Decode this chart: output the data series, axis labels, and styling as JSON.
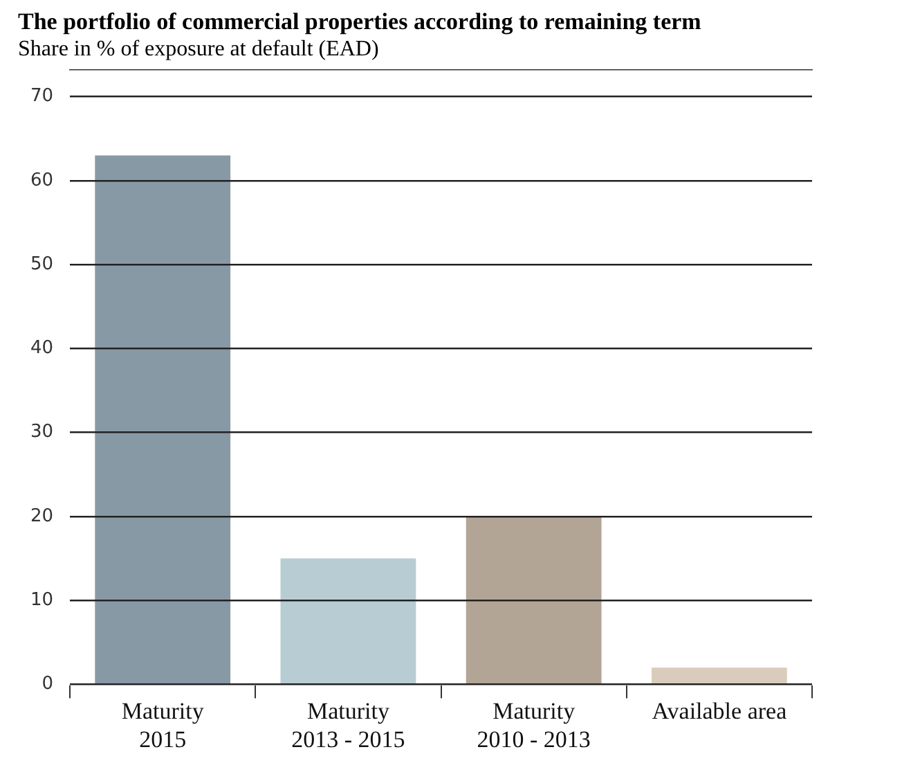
{
  "chart_data": {
    "type": "bar",
    "title": "The portfolio of commercial properties according to remaining term",
    "subtitle": "Share in % of exposure at default (EAD)",
    "categories": [
      "Maturity\n2015",
      "Maturity\n2013 - 2015",
      "Maturity\n2010 - 2013",
      "Available area"
    ],
    "values": [
      63,
      15,
      20,
      2
    ],
    "colors": [
      "#8899a6",
      "#b7cdd3",
      "#b3a596",
      "#d9ccbd"
    ],
    "ylim": [
      0,
      70
    ],
    "yticks": [
      0,
      10,
      20,
      30,
      40,
      50,
      60,
      70
    ],
    "grid": "y",
    "legend": false
  }
}
